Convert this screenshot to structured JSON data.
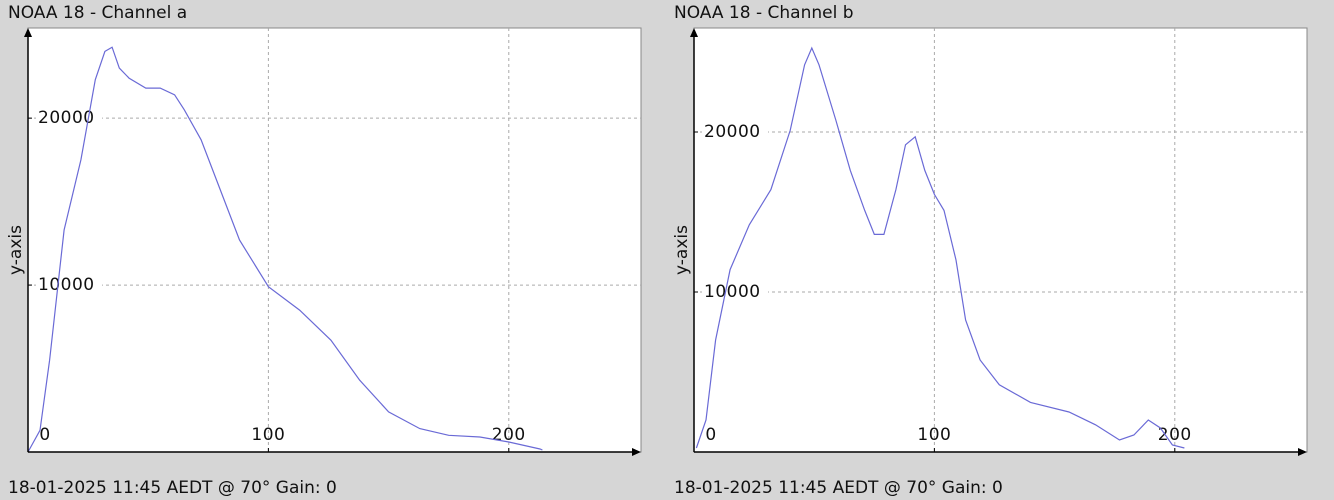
{
  "chart_data": [
    {
      "type": "line",
      "title": "NOAA 18 - Channel a",
      "y_label": "y-axis",
      "footer": "18-01-2025 11:45 AEDT @ 70° Gain: 0",
      "xlim": [
        0,
        255
      ],
      "ylim": [
        0,
        25400
      ],
      "xticks": [
        0,
        100,
        200
      ],
      "yticks": [
        10000,
        20000
      ],
      "grid": true,
      "series": [
        {
          "color": "#6a6ad6",
          "x": [
            0,
            5,
            9,
            15,
            22,
            28,
            32,
            35,
            38,
            42,
            49,
            55,
            61,
            65,
            72,
            80,
            88,
            100,
            113,
            126,
            138,
            150,
            163,
            175,
            188,
            200,
            213,
            214
          ],
          "values": [
            0,
            1300,
            5500,
            13300,
            17500,
            22300,
            24000,
            24250,
            23000,
            22400,
            21800,
            21800,
            21400,
            20500,
            18700,
            15700,
            12700,
            9900,
            8500,
            6700,
            4300,
            2400,
            1400,
            1000,
            900,
            600,
            180,
            120
          ]
        }
      ]
    },
    {
      "type": "line",
      "title": "NOAA 18 - Channel b",
      "y_label": "y-axis",
      "footer": "18-01-2025 11:45 AEDT @ 70° Gain: 0",
      "xlim": [
        0,
        255
      ],
      "ylim": [
        0,
        26500
      ],
      "xticks": [
        0,
        100,
        200
      ],
      "yticks": [
        10000,
        20000
      ],
      "grid": true,
      "series": [
        {
          "color": "#6a6ad6",
          "x": [
            1,
            5,
            9,
            15,
            23,
            32,
            40,
            46,
            49,
            52,
            59,
            65,
            71,
            75,
            79,
            84,
            88,
            92,
            96,
            100,
            104,
            109,
            113,
            119,
            127,
            140,
            156,
            167,
            177,
            183,
            189,
            194,
            199,
            204
          ],
          "values": [
            250,
            2000,
            7000,
            11400,
            14200,
            16400,
            20100,
            24200,
            25250,
            24200,
            20750,
            17600,
            15100,
            13600,
            13600,
            16400,
            19200,
            19700,
            17600,
            16100,
            15100,
            12000,
            8250,
            5750,
            4200,
            3100,
            2500,
            1700,
            750,
            1060,
            2000,
            1500,
            440,
            250
          ]
        }
      ]
    }
  ]
}
